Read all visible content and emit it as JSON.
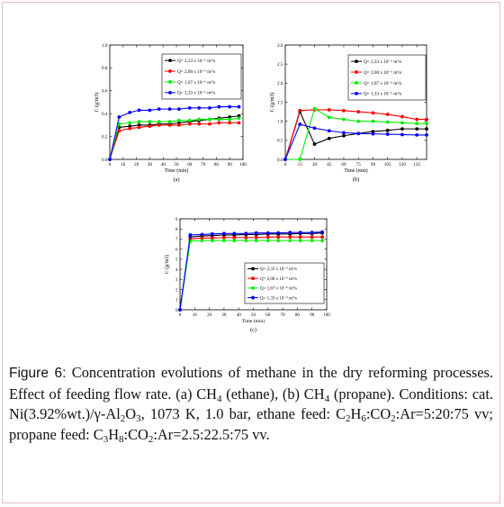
{
  "chart_data": [
    {
      "panel_label": "(a)",
      "type": "line",
      "xlabel": "Time (min)",
      "ylabel": "C (g/m3)",
      "xlim": [
        0,
        100
      ],
      "ylim": [
        0,
        1.0
      ],
      "x_ticks": [
        "0",
        "10",
        "20",
        "30",
        "40",
        "50",
        "60",
        "70",
        "80",
        "90",
        "100"
      ],
      "y_ticks": [
        "0.0",
        "0.2",
        "0.4",
        "0.6",
        "0.8",
        "1.0"
      ],
      "legend_position": "top-right",
      "x": [
        0,
        7,
        15,
        22,
        30,
        37,
        45,
        52,
        60,
        67,
        75,
        82,
        90,
        97
      ],
      "series": [
        {
          "name": "Q= 2,33 x 10⁻⁶ m³/s",
          "color": "#000000",
          "values": [
            0,
            0.28,
            0.29,
            0.3,
            0.3,
            0.31,
            0.31,
            0.32,
            0.33,
            0.34,
            0.35,
            0.36,
            0.37,
            0.38
          ]
        },
        {
          "name": "Q= 2,00 x 10⁻⁶ m³/s",
          "color": "#ff0000",
          "values": [
            0,
            0.25,
            0.27,
            0.28,
            0.29,
            0.3,
            0.3,
            0.3,
            0.31,
            0.31,
            0.31,
            0.32,
            0.32,
            0.32
          ]
        },
        {
          "name": "Q= 1,67 x 10⁻⁶ m³/s",
          "color": "#00ee00",
          "values": [
            0,
            0.31,
            0.32,
            0.33,
            0.33,
            0.33,
            0.33,
            0.34,
            0.34,
            0.35,
            0.35,
            0.35,
            0.35,
            0.36
          ]
        },
        {
          "name": "Q= 1,33 x 10⁻⁶ m³/s",
          "color": "#0000ff",
          "values": [
            0,
            0.37,
            0.41,
            0.43,
            0.43,
            0.44,
            0.44,
            0.44,
            0.45,
            0.45,
            0.45,
            0.46,
            0.46,
            0.46
          ]
        }
      ]
    },
    {
      "panel_label": "(b)",
      "type": "line",
      "xlabel": "Time (min)",
      "ylabel": "C (g/m3)",
      "xlim": [
        0,
        145
      ],
      "ylim": [
        0,
        3.0
      ],
      "x_ticks": [
        "0",
        "15",
        "30",
        "45",
        "60",
        "75",
        "90",
        "105",
        "120",
        "135"
      ],
      "y_ticks": [
        "0.0",
        "0.5",
        "1.0",
        "1.5",
        "2.0",
        "2.5",
        "3.0"
      ],
      "legend_position": "top-right",
      "x": [
        0,
        15,
        30,
        45,
        60,
        75,
        90,
        105,
        120,
        135,
        145
      ],
      "series": [
        {
          "name": "Q= 2,33 x 10⁻⁶ m³/s",
          "color": "#000000",
          "values": [
            0,
            1.25,
            0.4,
            0.55,
            0.62,
            0.68,
            0.73,
            0.76,
            0.8,
            0.8,
            0.8
          ]
        },
        {
          "name": "Q= 2,00 x 10⁻⁶ m³/s",
          "color": "#ff0000",
          "values": [
            0,
            1.28,
            1.3,
            1.3,
            1.28,
            1.25,
            1.22,
            1.18,
            1.12,
            1.05,
            1.05
          ]
        },
        {
          "name": "Q= 1,67 x 10⁻⁶ m³/s",
          "color": "#00ee00",
          "values": [
            0,
            0.0,
            1.33,
            1.1,
            1.05,
            1.0,
            1.0,
            0.98,
            0.96,
            0.94,
            0.94
          ]
        },
        {
          "name": "Q= 1,33 x 10⁻⁶ m³/s",
          "color": "#0000ff",
          "values": [
            0,
            0.92,
            0.82,
            0.75,
            0.7,
            0.68,
            0.67,
            0.66,
            0.65,
            0.64,
            0.64
          ]
        }
      ]
    },
    {
      "panel_label": "(c)",
      "type": "line",
      "xlabel": "Time (min)",
      "ylabel": "C (g/m3)",
      "xlim": [
        0,
        100
      ],
      "ylim": [
        0,
        9
      ],
      "x_ticks": [
        "0",
        "10",
        "20",
        "30",
        "40",
        "50",
        "60",
        "70",
        "80",
        "90",
        "100"
      ],
      "y_ticks": [
        "0",
        "1",
        "2",
        "3",
        "4",
        "5",
        "6",
        "7",
        "8",
        "9"
      ],
      "legend_position": "bottom-right",
      "x": [
        0,
        7,
        15,
        22,
        30,
        37,
        45,
        52,
        60,
        67,
        75,
        82,
        90,
        97
      ],
      "series": [
        {
          "name": "Q= 2,33 x 10⁻⁶ m³/s",
          "color": "#000000",
          "values": [
            0,
            7.2,
            7.3,
            7.35,
            7.4,
            7.4,
            7.45,
            7.45,
            7.5,
            7.5,
            7.5,
            7.55,
            7.55,
            7.6
          ]
        },
        {
          "name": "Q= 2,00 x 10⁻⁶ m³/s",
          "color": "#ff0000",
          "values": [
            0,
            7.0,
            7.1,
            7.1,
            7.15,
            7.15,
            7.15,
            7.15,
            7.2,
            7.2,
            7.2,
            7.2,
            7.2,
            7.2
          ]
        },
        {
          "name": "Q= 1,67 x 10⁻⁶ m³/s",
          "color": "#00ee00",
          "values": [
            0,
            6.8,
            6.85,
            6.85,
            6.85,
            6.85,
            6.85,
            6.85,
            6.85,
            6.85,
            6.85,
            6.85,
            6.85,
            6.85
          ]
        },
        {
          "name": "Q= 1,33 x 10⁻⁶ m³/s",
          "color": "#0000ff",
          "values": [
            0,
            7.4,
            7.45,
            7.5,
            7.55,
            7.55,
            7.55,
            7.6,
            7.6,
            7.6,
            7.65,
            7.65,
            7.65,
            7.7
          ]
        }
      ]
    }
  ],
  "caption": {
    "label": "Figure 6:",
    "line1": "Concentration evolutions of methane in the dry reforming processes. Effect of feeding flow rate. (a) CH",
    "sub_4a": "4",
    "mid1": " (ethane), (b) CH",
    "sub_4b": "4",
    "mid2": " (propane). Conditions: cat. Ni(3.92%wt.)/γ-Al",
    "sub_2a": "2",
    "o3": "O",
    "sub_3a": "3",
    "mid3": ", 1073 K, 1.0 bar, ethane feed: C",
    "sub_2b": "2",
    "h6": "H",
    "sub_6": "6",
    "mid4": ":CO",
    "sub_2c": "2",
    "mid5": ":Ar=5:20:75 vv; propane feed: C",
    "sub_3b": "3",
    "h8": "H",
    "sub_8": "8",
    "mid6": ":CO",
    "sub_2d": "2",
    "end": ":Ar=2.5:22.5:75 vv."
  }
}
